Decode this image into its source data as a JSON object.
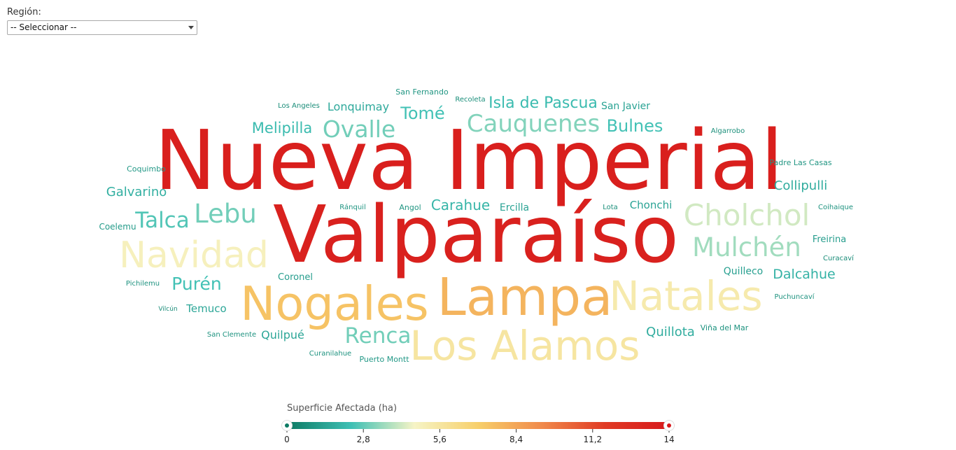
{
  "filter": {
    "label": "Región:",
    "selected": "-- Seleccionar --"
  },
  "legend": {
    "title": "Superficie Afectada (ha)",
    "min": 0,
    "max": 14,
    "ticks": [
      "0",
      "2,8",
      "5,6",
      "8,4",
      "11,2",
      "14"
    ],
    "gradient_stops": [
      "#0d7a63",
      "#3dbfb4",
      "#f6f4c6",
      "#f7cf6a",
      "#f08a4b",
      "#e03a24",
      "#d7191c"
    ]
  },
  "chart_data": {
    "type": "wordcloud",
    "title": "",
    "color_scale": {
      "title": "Superficie Afectada (ha)",
      "min": 0,
      "max": 14
    },
    "words": [
      {
        "text": "Nueva Imperial",
        "value": 13.6
      },
      {
        "text": "Valparaíso",
        "value": 13.4
      },
      {
        "text": "Lampa",
        "value": 7.9
      },
      {
        "text": "Nogales",
        "value": 7.4
      },
      {
        "text": "Los Alamos",
        "value": 5.6
      },
      {
        "text": "Natales",
        "value": 5.3
      },
      {
        "text": "Navidad",
        "value": 4.9
      },
      {
        "text": "Cholchol",
        "value": 4.2
      },
      {
        "text": "Mulchén",
        "value": 3.6
      },
      {
        "text": "Cauquenes",
        "value": 3.2
      },
      {
        "text": "Ovalle",
        "value": 3.0
      },
      {
        "text": "Lebu",
        "value": 3.0
      },
      {
        "text": "Renca",
        "value": 3.0
      },
      {
        "text": "Talca",
        "value": 2.6
      },
      {
        "text": "Tomé",
        "value": 2.4
      },
      {
        "text": "Bulnes",
        "value": 2.4
      },
      {
        "text": "Purén",
        "value": 2.4
      },
      {
        "text": "Isla de Pascua",
        "value": 2.2
      },
      {
        "text": "Melipilla",
        "value": 2.2
      },
      {
        "text": "Carahue",
        "value": 2.0
      },
      {
        "text": "Dalcahue",
        "value": 1.9
      },
      {
        "text": "Galvarino",
        "value": 1.8
      },
      {
        "text": "Collipulli",
        "value": 1.7
      },
      {
        "text": "Quillota",
        "value": 1.7
      },
      {
        "text": "Lonquimay",
        "value": 1.6
      },
      {
        "text": "Quilpué",
        "value": 1.5
      },
      {
        "text": "Temuco",
        "value": 1.5
      },
      {
        "text": "San Javier",
        "value": 1.4
      },
      {
        "text": "Ercilla",
        "value": 1.4
      },
      {
        "text": "Chonchi",
        "value": 1.4
      },
      {
        "text": "Quilleco",
        "value": 1.3
      },
      {
        "text": "Coronel",
        "value": 1.2
      },
      {
        "text": "Freirina",
        "value": 1.2
      },
      {
        "text": "Coelemu",
        "value": 1.1
      },
      {
        "text": "Puerto Montt",
        "value": 1.0
      },
      {
        "text": "Coquimbo",
        "value": 1.0
      },
      {
        "text": "Angol",
        "value": 0.9
      },
      {
        "text": "Padre Las Casas",
        "value": 0.9
      },
      {
        "text": "Ránquil",
        "value": 0.9
      },
      {
        "text": "San Fernando",
        "value": 0.9
      },
      {
        "text": "Puchuncaví",
        "value": 0.8
      },
      {
        "text": "Curanilahue",
        "value": 0.8
      },
      {
        "text": "Coihaique",
        "value": 0.8
      },
      {
        "text": "Pichilemu",
        "value": 0.8
      },
      {
        "text": "Viña del Mar",
        "value": 0.8
      },
      {
        "text": "San Clemente",
        "value": 0.8
      },
      {
        "text": "Algarrobo",
        "value": 0.7
      },
      {
        "text": "Lota",
        "value": 0.7
      },
      {
        "text": "Recoleta",
        "value": 0.7
      },
      {
        "text": "Los Angeles",
        "value": 0.6
      },
      {
        "text": "Curacaví",
        "value": 0.6
      },
      {
        "text": "Vilcún",
        "value": 0.6
      }
    ]
  }
}
